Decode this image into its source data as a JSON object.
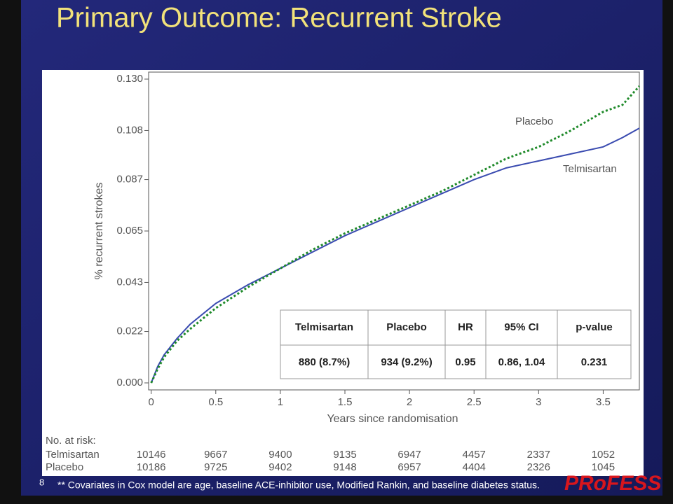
{
  "slide": {
    "title": "Primary Outcome: Recurrent Stroke",
    "footnote": "** Covariates in Cox model are age, baseline ACE-inhibitor use, Modified Rankin, and baseline diabetes status.",
    "page_number": "8",
    "logo": "PRoFESS"
  },
  "chart_data": {
    "type": "line",
    "xlabel": "Years since randomisation",
    "ylabel": "% recurrent strokes",
    "x": [
      0,
      0.05,
      0.1,
      0.2,
      0.3,
      0.5,
      0.75,
      1,
      1.25,
      1.5,
      1.75,
      2,
      2.25,
      2.5,
      2.75,
      3,
      3.25,
      3.5,
      3.65,
      3.78
    ],
    "series": [
      {
        "name": "Telmisartan",
        "color": "#3a4bb0",
        "style": "solid",
        "values": [
          0,
          0.007,
          0.012,
          0.019,
          0.025,
          0.034,
          0.042,
          0.049,
          0.056,
          0.063,
          0.069,
          0.075,
          0.081,
          0.087,
          0.092,
          0.095,
          0.098,
          0.101,
          0.105,
          0.109
        ]
      },
      {
        "name": "Placebo",
        "color": "#1f8a2a",
        "style": "dotted",
        "values": [
          0,
          0.006,
          0.011,
          0.018,
          0.023,
          0.032,
          0.041,
          0.049,
          0.057,
          0.064,
          0.07,
          0.076,
          0.082,
          0.089,
          0.096,
          0.101,
          0.108,
          0.116,
          0.119,
          0.127
        ]
      }
    ],
    "xlim": [
      -0.02,
      3.78
    ],
    "ylim": [
      -0.003,
      0.133
    ],
    "xticks": [
      0,
      0.5,
      1,
      1.5,
      2,
      2.5,
      3,
      3.5
    ],
    "yticks": [
      {
        "value": 0,
        "label": "0.000"
      },
      0.022,
      0.043,
      0.065,
      0.087,
      0.108,
      {
        "value": 0.13,
        "label": "0.130"
      }
    ],
    "stats_table": {
      "header": [
        "Telmisartan",
        "Placebo",
        "HR",
        "95% CI",
        "p-value"
      ],
      "rows": [
        [
          "880 (8.7%)",
          "934 (9.2%)",
          "0.95",
          "0.86, 1.04",
          "0.231"
        ]
      ]
    },
    "at_risk": {
      "title": "No. at risk:",
      "rows": [
        {
          "name": "Telmisartan",
          "values": [
            "10146",
            "9667",
            "9400",
            "9135",
            "6947",
            "4457",
            "2337",
            "1052"
          ]
        },
        {
          "name": "Placebo",
          "values": [
            "10186",
            "9725",
            "9402",
            "9148",
            "6957",
            "4404",
            "2326",
            "1045"
          ]
        }
      ]
    }
  }
}
